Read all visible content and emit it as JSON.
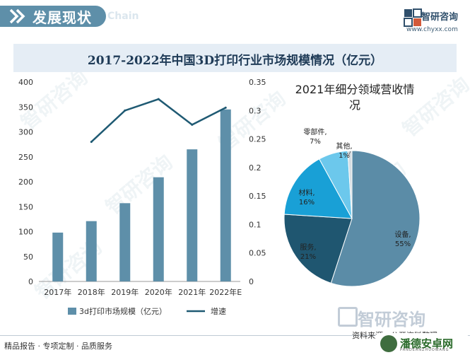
{
  "header": {
    "title": "发展现状",
    "title_en": "Chain",
    "brand": "智研咨询",
    "url": "www.chyxx.com"
  },
  "chart_title": "2017-2022年中国3D打印行业市场规模情况（亿元）",
  "chart_data": [
    {
      "type": "bar",
      "categories": [
        "2017年",
        "2018年",
        "2019年",
        "2020年",
        "2021年",
        "2022年E"
      ],
      "series": [
        {
          "name": "3d打印市场规模（亿元）",
          "type": "bar",
          "axis": "left",
          "color": "#5e8fa9",
          "values": [
            98,
            121,
            157,
            209,
            265,
            345
          ]
        },
        {
          "name": "增速",
          "type": "line",
          "axis": "right",
          "color": "#1f5a73",
          "values": [
            null,
            0.245,
            0.3,
            0.32,
            0.275,
            0.305
          ]
        }
      ],
      "ylim_left": [
        0,
        400
      ],
      "yticks_left": [
        "0",
        "50",
        "100",
        "150",
        "200",
        "250",
        "300",
        "350",
        "400"
      ],
      "ylim_right": [
        0,
        0.35
      ],
      "yticks_right": [
        "0",
        "0.05",
        "0.1",
        "0.15",
        "0.2",
        "0.25",
        "0.3",
        "0.35"
      ],
      "legend_position": "bottom",
      "grid": false
    },
    {
      "type": "pie",
      "title": "2021年细分领域营收情况",
      "title_lines": [
        "2021年细分领域营收情",
        "况"
      ],
      "labels": [
        "设备",
        "服务",
        "材料",
        "零部件",
        "其他"
      ],
      "label_names": [
        "设备,",
        "服务,",
        "材料,",
        "零部件,",
        "其他,"
      ],
      "label_pcts": [
        "55%",
        "21%",
        "16%",
        "7%",
        "1%"
      ],
      "values": [
        55,
        21,
        16,
        7,
        1
      ],
      "colors": [
        "#5b8ca7",
        "#1f5670",
        "#19a0d6",
        "#6cc8ec",
        "#d6dde2"
      ]
    }
  ],
  "footer": {
    "left_text": "精品报告 · 专项定制 · 品质服务",
    "source": "资料来源：公开资料整理",
    "badge_title": "潘德安卓网",
    "badge_sub": "PANDEANZHUOWANG"
  }
}
